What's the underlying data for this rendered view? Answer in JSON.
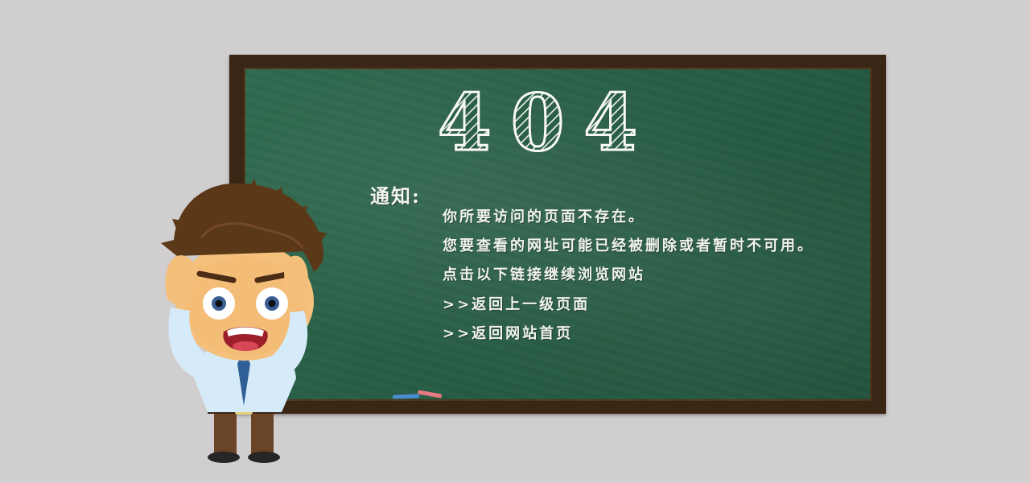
{
  "error": {
    "code": "404"
  },
  "notice": {
    "title": "通知:",
    "lines": [
      "你所要访问的页面不存在。",
      "您要查看的网址可能已经被删除或者暂时不可用。",
      "点击以下链接继续浏览网站"
    ],
    "links": [
      ">>返回上一级页面",
      ">>返回网站首页"
    ]
  },
  "colors": {
    "background": "#d0cecf",
    "board_green": "#285d45",
    "frame_brown": "#3a2614",
    "chalk_text": "#f2f2ee",
    "chalk_blue": "#4a8ed0",
    "chalk_pink": "#e77a82"
  },
  "icons": {
    "character": "scared-cartoon-man",
    "chalk": "chalk-pieces"
  }
}
